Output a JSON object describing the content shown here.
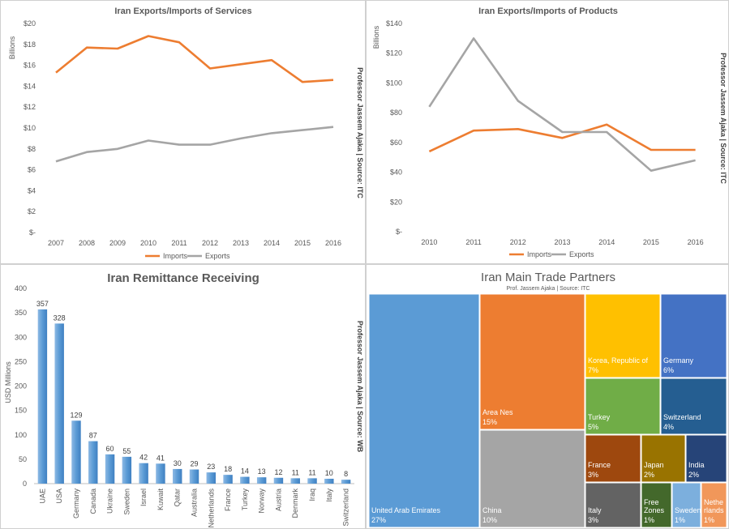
{
  "chart_data": [
    {
      "type": "line",
      "title": "Iran Exports/Imports of Services",
      "ylabel": "Billions",
      "side_note": "Professor Jassem Ajaka | Source: ITC",
      "x": [
        "2007",
        "2008",
        "2009",
        "2010",
        "2011",
        "2012",
        "2013",
        "2014",
        "2015",
        "2016"
      ],
      "ylim": [
        0,
        20
      ],
      "ytick_labels": [
        "$-",
        "$2",
        "$4",
        "$6",
        "$8",
        "$10",
        "$12",
        "$14",
        "$16",
        "$18",
        "$20"
      ],
      "series": [
        {
          "name": "Imports",
          "color": "#ED7D31",
          "values": [
            15.3,
            17.7,
            17.6,
            18.8,
            18.2,
            15.7,
            16.1,
            16.5,
            14.4,
            14.6
          ]
        },
        {
          "name": "Exports",
          "color": "#A5A5A5",
          "values": [
            6.8,
            7.7,
            8.0,
            8.8,
            8.4,
            8.4,
            9.0,
            9.5,
            9.8,
            10.1
          ]
        }
      ],
      "legend": "bottom",
      "grid": false
    },
    {
      "type": "line",
      "title": "Iran Exports/Imports of Products",
      "ylabel": "Billions",
      "side_note": "Professor Jassem Ajaka | Source: ITC",
      "x": [
        "2010",
        "2011",
        "2012",
        "2013",
        "2014",
        "2015",
        "2016"
      ],
      "ylim": [
        0,
        140
      ],
      "ytick_labels": [
        "$-",
        "$20",
        "$40",
        "$60",
        "$80",
        "$100",
        "$120",
        "$140"
      ],
      "series": [
        {
          "name": "Imports",
          "color": "#ED7D31",
          "values": [
            54,
            68,
            69,
            63,
            72,
            55,
            55
          ]
        },
        {
          "name": "Exports",
          "color": "#A5A5A5",
          "values": [
            84,
            130,
            88,
            67,
            67,
            41,
            48
          ]
        }
      ],
      "legend": "bottom",
      "grid": false
    },
    {
      "type": "bar",
      "title": "Iran Remittance Receiving",
      "ylabel": "USD Millions",
      "side_note": "Professor Jassem Ajaka | Source: WB",
      "categories": [
        "UAE",
        "USA",
        "Germany",
        "Canada",
        "Ukraine",
        "Sweden",
        "Israel",
        "Kuwait",
        "Qatar",
        "Australia",
        "Netherlands",
        "France",
        "Turkey",
        "Norway",
        "Austria",
        "Denmark",
        "Iraq",
        "Italy",
        "Switzerland"
      ],
      "values": [
        357,
        328,
        129,
        87,
        60,
        55,
        42,
        41,
        30,
        29,
        23,
        18,
        14,
        13,
        12,
        11,
        11,
        10,
        8
      ],
      "ylim": [
        0,
        400
      ],
      "yticks": [
        0,
        50,
        100,
        150,
        200,
        250,
        300,
        350,
        400
      ],
      "color": "#5B9BD5",
      "grid": false
    },
    {
      "type": "treemap",
      "title": "Iran Main Trade Partners",
      "subtitle": "Prof. Jassem Ajaka | Source: ITC",
      "items": [
        {
          "name": "United Arab Emirates",
          "pct": "27%",
          "color": "#5B9BD5"
        },
        {
          "name": "Area Nes",
          "pct": "15%",
          "color": "#ED7D31"
        },
        {
          "name": "China",
          "pct": "10%",
          "color": "#A5A5A5"
        },
        {
          "name": "Korea, Republic of",
          "pct": "7%",
          "color": "#FFC000"
        },
        {
          "name": "Germany",
          "pct": "6%",
          "color": "#4472C4"
        },
        {
          "name": "Turkey",
          "pct": "5%",
          "color": "#70AD47"
        },
        {
          "name": "Switzerland",
          "pct": "4%",
          "color": "#255E91"
        },
        {
          "name": "France",
          "pct": "3%",
          "color": "#9E480E"
        },
        {
          "name": "Japan",
          "pct": "2%",
          "color": "#997300"
        },
        {
          "name": "India",
          "pct": "2%",
          "color": "#264478"
        },
        {
          "name": "Italy",
          "pct": "3%",
          "color": "#636363"
        },
        {
          "name": "Free Zones",
          "pct": "1%",
          "color": "#43682B"
        },
        {
          "name": "Sweden",
          "pct": "1%",
          "color": "#7CAFDD"
        },
        {
          "name": "Nethe rlands",
          "pct": "1%",
          "color": "#F1975A"
        }
      ]
    }
  ]
}
